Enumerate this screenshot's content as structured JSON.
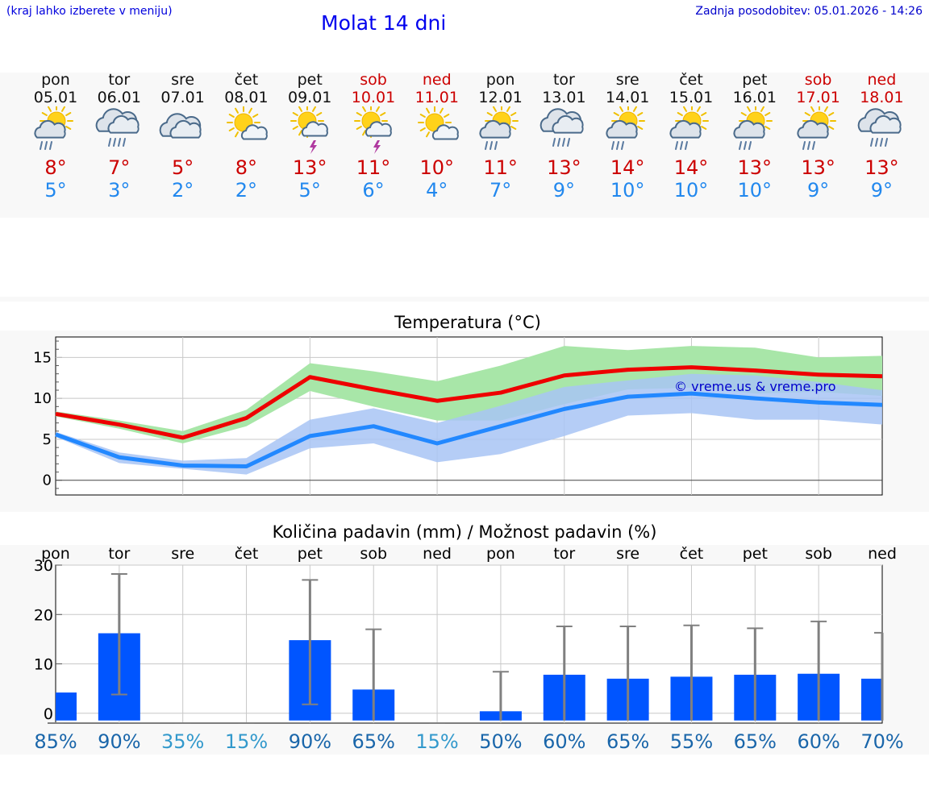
{
  "header": {
    "location_hint": "(kraj lahko izberete v meniju)",
    "title": "Molat 14 dni",
    "updated": "Zadnja posodobitev: 05.01.2026 - 14:26"
  },
  "days": [
    {
      "name": "pon",
      "date": "05.01",
      "weekend": false,
      "icon": "sun-cloud-rain",
      "tmax": "8°",
      "tmin": "5°"
    },
    {
      "name": "tor",
      "date": "06.01",
      "weekend": false,
      "icon": "cloud-rain",
      "tmax": "7°",
      "tmin": "3°"
    },
    {
      "name": "sre",
      "date": "07.01",
      "weekend": false,
      "icon": "cloud",
      "tmax": "5°",
      "tmin": "2°"
    },
    {
      "name": "čet",
      "date": "08.01",
      "weekend": false,
      "icon": "sun-cloud",
      "tmax": "8°",
      "tmin": "2°"
    },
    {
      "name": "pet",
      "date": "09.01",
      "weekend": false,
      "icon": "sun-cloud-storm",
      "tmax": "13°",
      "tmin": "5°"
    },
    {
      "name": "sob",
      "date": "10.01",
      "weekend": true,
      "icon": "sun-cloud-storm",
      "tmax": "11°",
      "tmin": "6°"
    },
    {
      "name": "ned",
      "date": "11.01",
      "weekend": true,
      "icon": "sun-cloud",
      "tmax": "10°",
      "tmin": "4°"
    },
    {
      "name": "pon",
      "date": "12.01",
      "weekend": false,
      "icon": "sun-cloud-rain",
      "tmax": "11°",
      "tmin": "7°"
    },
    {
      "name": "tor",
      "date": "13.01",
      "weekend": false,
      "icon": "cloud-rain",
      "tmax": "13°",
      "tmin": "9°"
    },
    {
      "name": "sre",
      "date": "14.01",
      "weekend": false,
      "icon": "sun-cloud-rain",
      "tmax": "14°",
      "tmin": "10°"
    },
    {
      "name": "čet",
      "date": "15.01",
      "weekend": false,
      "icon": "sun-cloud-rain",
      "tmax": "14°",
      "tmin": "10°"
    },
    {
      "name": "pet",
      "date": "16.01",
      "weekend": false,
      "icon": "sun-cloud-rain",
      "tmax": "13°",
      "tmin": "10°"
    },
    {
      "name": "sob",
      "date": "17.01",
      "weekend": true,
      "icon": "sun-cloud-rain",
      "tmax": "13°",
      "tmin": "9°"
    },
    {
      "name": "ned",
      "date": "18.01",
      "weekend": true,
      "icon": "cloud-rain",
      "tmax": "13°",
      "tmin": "9°"
    }
  ],
  "colors": {
    "max_line": "#ee0000",
    "max_band": "#a8e6a8",
    "min_line": "#2288ff",
    "min_band": "#a8c4f4",
    "overlap_band": "#7cc4a8",
    "bar": "#0055ff",
    "whisker": "#808080",
    "weekend": "#cc0000",
    "percent_high": "#1a66aa",
    "percent_low": "#3399cc"
  },
  "chart_data": [
    {
      "type": "line",
      "title": "Temperatura (°C)",
      "watermark": "© vreme.us & vreme.pro",
      "x_days": [
        0,
        1,
        2,
        3,
        4,
        5,
        6,
        7,
        8,
        9,
        10,
        11,
        12,
        13
      ],
      "ylim": [
        -1.8,
        17.5
      ],
      "yticks": [
        0,
        5,
        10,
        15
      ],
      "grid": true,
      "series": [
        {
          "name": "max",
          "values": [
            8.1,
            6.8,
            5.2,
            7.6,
            12.6,
            11.1,
            9.7,
            10.7,
            12.8,
            13.5,
            13.8,
            13.4,
            12.9,
            12.7
          ],
          "upper": [
            8.4,
            7.3,
            6.0,
            8.6,
            14.3,
            13.3,
            12.1,
            14.0,
            16.4,
            15.9,
            16.4,
            16.2,
            15.0,
            15.2
          ],
          "lower": [
            7.8,
            6.3,
            4.5,
            6.6,
            10.9,
            9.0,
            7.3,
            7.3,
            9.3,
            11.1,
            11.3,
            10.6,
            10.8,
            10.3
          ]
        },
        {
          "name": "min",
          "values": [
            5.6,
            2.8,
            1.8,
            1.7,
            5.4,
            6.6,
            4.5,
            6.6,
            8.7,
            10.2,
            10.6,
            10.0,
            9.5,
            9.2
          ],
          "upper": [
            5.9,
            3.4,
            2.4,
            2.7,
            7.4,
            8.8,
            7.0,
            9.1,
            11.4,
            12.2,
            13.0,
            12.8,
            12.0,
            11.0
          ],
          "lower": [
            5.3,
            2.1,
            1.4,
            0.7,
            3.9,
            4.5,
            2.2,
            3.2,
            5.4,
            7.9,
            8.2,
            7.4,
            7.4,
            6.8
          ]
        }
      ]
    },
    {
      "type": "bar",
      "title": "Količina padavin (mm) / Možnost padavin (%)",
      "categories": [
        "pon",
        "tor",
        "sre",
        "čet",
        "pet",
        "sob",
        "ned",
        "pon",
        "tor",
        "sre",
        "čet",
        "pet",
        "sob",
        "ned"
      ],
      "ylim": [
        -2,
        30
      ],
      "yticks": [
        0,
        10,
        20,
        30
      ],
      "values": [
        4.2,
        16.2,
        0,
        0,
        14.8,
        4.8,
        0,
        0.4,
        7.8,
        7.0,
        7.4,
        7.8,
        8.0,
        7.0
      ],
      "error_low": [
        0,
        3.8,
        0,
        0,
        1.8,
        0,
        0,
        0,
        0,
        0,
        0,
        0,
        0,
        0
      ],
      "error_high": [
        0,
        28.2,
        0,
        0,
        27.0,
        17.0,
        0,
        8.4,
        17.6,
        17.6,
        17.8,
        17.2,
        18.6,
        16.3
      ],
      "percent_labels": [
        "85%",
        "90%",
        "35%",
        "15%",
        "90%",
        "65%",
        "15%",
        "50%",
        "60%",
        "65%",
        "55%",
        "65%",
        "60%",
        "70%"
      ],
      "percent_values": [
        85,
        90,
        35,
        15,
        90,
        65,
        15,
        50,
        60,
        65,
        55,
        65,
        60,
        70
      ]
    }
  ]
}
